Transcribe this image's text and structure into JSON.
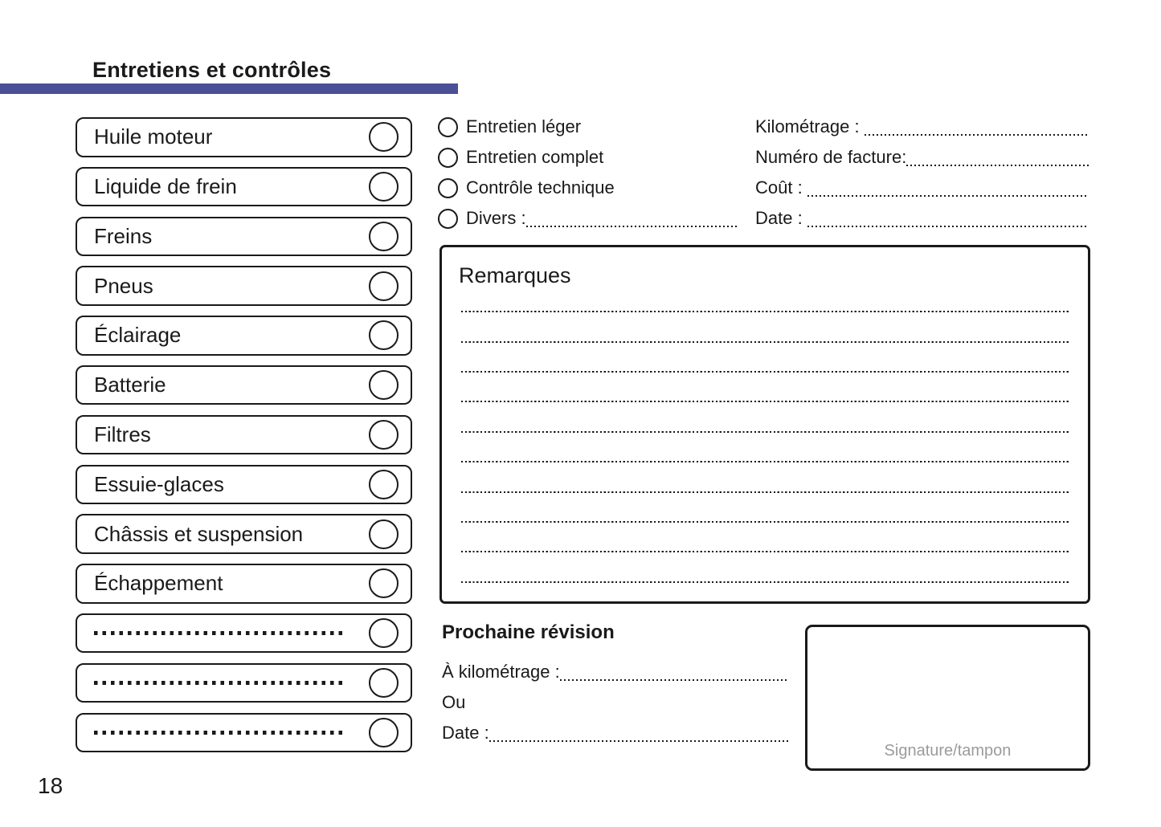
{
  "page": {
    "title": "Entretiens et contrôles",
    "page_number": "18",
    "accent_color": "#4a4f97",
    "border_color": "#1a1a1a",
    "muted_text_color": "#9b9b9b"
  },
  "checklist": {
    "items": [
      {
        "label": "Huile moteur",
        "blank": false
      },
      {
        "label": "Liquide de frein",
        "blank": false
      },
      {
        "label": "Freins",
        "blank": false
      },
      {
        "label": "Pneus",
        "blank": false
      },
      {
        "label": "Éclairage",
        "blank": false
      },
      {
        "label": "Batterie",
        "blank": false
      },
      {
        "label": "Filtres",
        "blank": false
      },
      {
        "label": "Essuie-glaces",
        "blank": false
      },
      {
        "label": "Châssis et suspension",
        "blank": false
      },
      {
        "label": "Échappement",
        "blank": false
      },
      {
        "label": "",
        "blank": true
      },
      {
        "label": "",
        "blank": true
      },
      {
        "label": "",
        "blank": true
      }
    ]
  },
  "service_types": {
    "options": [
      {
        "label": "Entretien léger",
        "fill_line": false
      },
      {
        "label": "Entretien complet",
        "fill_line": false
      },
      {
        "label": "Contrôle technique",
        "fill_line": false
      },
      {
        "label": "Divers :",
        "fill_line": true
      }
    ]
  },
  "invoice_fields": {
    "fields": [
      {
        "label": "Kilométrage : "
      },
      {
        "label": "Numéro de facture:"
      },
      {
        "label": "Coût : "
      },
      {
        "label": "Date : "
      }
    ]
  },
  "remarks": {
    "title": "Remarques",
    "line_count": 10
  },
  "next_service": {
    "title": "Prochaine révision",
    "rows": [
      {
        "label": "À kilométrage :",
        "fill_line": true
      },
      {
        "label": "Ou",
        "fill_line": false
      },
      {
        "label": "Date :",
        "fill_line": true
      }
    ]
  },
  "signature": {
    "label": "Signature/tampon"
  }
}
